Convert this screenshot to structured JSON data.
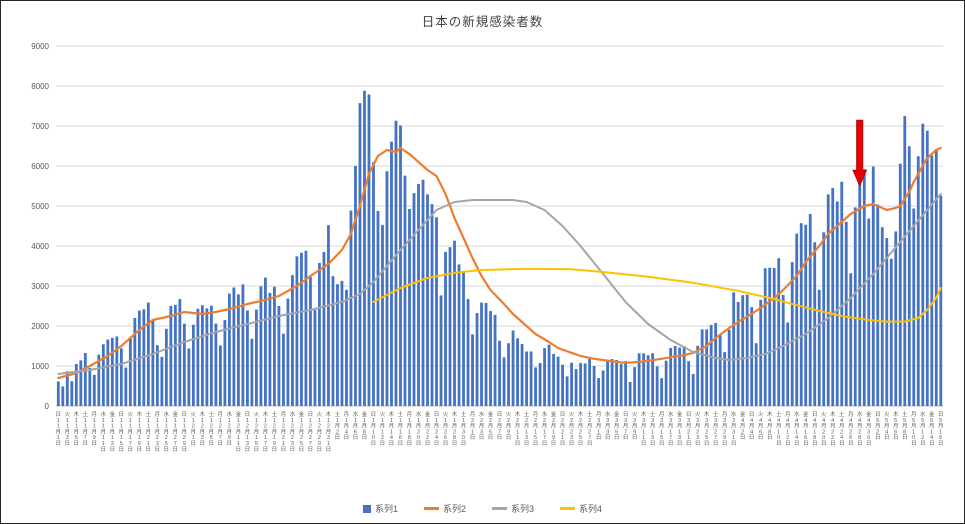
{
  "title": "日本の新規感染者数",
  "chart_data": {
    "type": "combo",
    "title": "日本の新規感染者数",
    "grid": true,
    "legend_position": "bottom",
    "y_axis": {
      "min": 0,
      "max": 9000,
      "tick_step": 1000,
      "tick_labels": [
        "0",
        "1000",
        "2000",
        "3000",
        "4000",
        "5000",
        "6000",
        "7000",
        "8000",
        "9000"
      ]
    },
    "x_axis": {
      "description": "daily dates, every 2nd day labeled vertically: weekday / month / 月 / day / 日",
      "label_every": 2,
      "dow_cycle": [
        "日",
        "月",
        "火",
        "水",
        "木",
        "金",
        "土"
      ],
      "start_dow_index": 0,
      "month_suffix": "月",
      "day_suffix": "日",
      "months": [
        {
          "month": 11,
          "days": 30
        },
        {
          "month": 12,
          "days": 31
        },
        {
          "month": 1,
          "days": 31
        },
        {
          "month": 2,
          "days": 28
        },
        {
          "month": 3,
          "days": 31
        },
        {
          "month": 4,
          "days": 30
        },
        {
          "month": 5,
          "days": 16
        }
      ]
    },
    "series": [
      {
        "name": "系列1",
        "type": "bar",
        "color": "#4472C4",
        "values": [
          614,
          488,
          868,
          620,
          1050,
          1141,
          1325,
          952,
          780,
          1284,
          1543,
          1660,
          1704,
          1738,
          1441,
          961,
          1699,
          2201,
          2386,
          2418,
          2586,
          2168,
          1520,
          1229,
          1930,
          2503,
          2529,
          2674,
          2058,
          1438,
          2030,
          2430,
          2518,
          2442,
          2508,
          2058,
          1514,
          2152,
          2811,
          2962,
          2790,
          3041,
          2388,
          1680,
          2410,
          2991,
          3211,
          2829,
          2982,
          2501,
          1806,
          2686,
          3271,
          3742,
          3832,
          3881,
          3225,
          2398,
          3576,
          3852,
          4520,
          3246,
          3044,
          3127,
          2906,
          4884,
          6001,
          7570,
          7882,
          7790,
          6093,
          4875,
          4527,
          5870,
          6607,
          7133,
          7014,
          5759,
          4925,
          5320,
          5549,
          5656,
          5292,
          5045,
          4717,
          2764,
          3853,
          3971,
          4133,
          3539,
          3344,
          2673,
          1792,
          2324,
          2585,
          2576,
          2372,
          2279,
          1632,
          1216,
          1570,
          1887,
          1693,
          1552,
          1362,
          1364,
          965,
          1076,
          1448,
          1536,
          1301,
          1234,
          1032,
          739,
          1083,
          922,
          1076,
          1065,
          1180,
          999,
          697,
          888,
          1121,
          1173,
          1148,
          1048,
          1121,
          599,
          972,
          1317,
          1316,
          1271,
          1320,
          989,
          695,
          1133,
          1451,
          1500,
          1463,
          1500,
          1119,
          800,
          1504,
          1917,
          1918,
          2027,
          2076,
          1785,
          1348,
          1905,
          2843,
          2601,
          2770,
          2783,
          2472,
          1571,
          2653,
          3445,
          3457,
          3451,
          3695,
          2775,
          2088,
          3597,
          4309,
          4570,
          4530,
          4802,
          4093,
          2905,
          4342,
          5290,
          5452,
          5113,
          5605,
          4605,
          3318,
          4965,
          5792,
          5918,
          4686,
          5986,
          5037,
          4470,
          4199,
          3680,
          4365,
          6058,
          7249,
          6493,
          4938,
          6243,
          7057,
          6881,
          6263,
          6421,
          5261
        ]
      },
      {
        "name": "系列2",
        "type": "line",
        "color": "#ED7D31",
        "points": [
          [
            0,
            700
          ],
          [
            4,
            820
          ],
          [
            7,
            1000
          ],
          [
            11,
            1250
          ],
          [
            14,
            1500
          ],
          [
            18,
            1900
          ],
          [
            21,
            2150
          ],
          [
            25,
            2250
          ],
          [
            28,
            2350
          ],
          [
            32,
            2300
          ],
          [
            35,
            2350
          ],
          [
            39,
            2450
          ],
          [
            42,
            2550
          ],
          [
            46,
            2650
          ],
          [
            49,
            2750
          ],
          [
            53,
            3000
          ],
          [
            56,
            3250
          ],
          [
            60,
            3550
          ],
          [
            63,
            3900
          ],
          [
            65,
            4300
          ],
          [
            67,
            5000
          ],
          [
            69,
            5800
          ],
          [
            71,
            6250
          ],
          [
            73,
            6400
          ],
          [
            75,
            6350
          ],
          [
            76,
            6450
          ],
          [
            78,
            6300
          ],
          [
            80,
            6100
          ],
          [
            82,
            5900
          ],
          [
            84,
            5750
          ],
          [
            86,
            5300
          ],
          [
            88,
            4700
          ],
          [
            90,
            4200
          ],
          [
            92,
            3700
          ],
          [
            94,
            3250
          ],
          [
            96,
            2900
          ],
          [
            99,
            2550
          ],
          [
            101,
            2300
          ],
          [
            104,
            2000
          ],
          [
            106,
            1800
          ],
          [
            109,
            1600
          ],
          [
            111,
            1450
          ],
          [
            114,
            1330
          ],
          [
            116,
            1250
          ],
          [
            119,
            1180
          ],
          [
            121,
            1150
          ],
          [
            124,
            1100
          ],
          [
            126,
            1080
          ],
          [
            129,
            1100
          ],
          [
            131,
            1130
          ],
          [
            134,
            1180
          ],
          [
            136,
            1220
          ],
          [
            139,
            1270
          ],
          [
            141,
            1330
          ],
          [
            144,
            1500
          ],
          [
            146,
            1700
          ],
          [
            149,
            1950
          ],
          [
            151,
            2100
          ],
          [
            154,
            2300
          ],
          [
            156,
            2450
          ],
          [
            159,
            2700
          ],
          [
            161,
            2900
          ],
          [
            164,
            3250
          ],
          [
            166,
            3600
          ],
          [
            169,
            4000
          ],
          [
            171,
            4300
          ],
          [
            174,
            4600
          ],
          [
            176,
            4800
          ],
          [
            179,
            5000
          ],
          [
            181,
            5050
          ],
          [
            183,
            4950
          ],
          [
            184,
            4900
          ],
          [
            186,
            4950
          ],
          [
            187,
            5000
          ],
          [
            189,
            5350
          ],
          [
            190,
            5600
          ],
          [
            192,
            6000
          ],
          [
            193,
            6200
          ],
          [
            195,
            6400
          ],
          [
            196,
            6450
          ]
        ]
      },
      {
        "name": "系列3",
        "type": "line",
        "color": "#A5A5A5",
        "points": [
          [
            0,
            800
          ],
          [
            7,
            900
          ],
          [
            14,
            1050
          ],
          [
            21,
            1300
          ],
          [
            28,
            1600
          ],
          [
            35,
            1850
          ],
          [
            42,
            2050
          ],
          [
            49,
            2250
          ],
          [
            56,
            2400
          ],
          [
            63,
            2600
          ],
          [
            67,
            2800
          ],
          [
            70,
            3100
          ],
          [
            73,
            3500
          ],
          [
            76,
            3900
          ],
          [
            80,
            4400
          ],
          [
            84,
            4900
          ],
          [
            88,
            5100
          ],
          [
            92,
            5150
          ],
          [
            96,
            5150
          ],
          [
            101,
            5150
          ],
          [
            104,
            5100
          ],
          [
            108,
            4900
          ],
          [
            112,
            4500
          ],
          [
            116,
            4000
          ],
          [
            121,
            3300
          ],
          [
            126,
            2600
          ],
          [
            131,
            2050
          ],
          [
            136,
            1650
          ],
          [
            141,
            1350
          ],
          [
            146,
            1200
          ],
          [
            149,
            1150
          ],
          [
            153,
            1200
          ],
          [
            157,
            1300
          ],
          [
            161,
            1500
          ],
          [
            166,
            1800
          ],
          [
            171,
            2200
          ],
          [
            176,
            2700
          ],
          [
            181,
            3300
          ],
          [
            184,
            3700
          ],
          [
            187,
            4100
          ],
          [
            190,
            4500
          ],
          [
            193,
            4900
          ],
          [
            196,
            5300
          ]
        ]
      },
      {
        "name": "系列4",
        "type": "line",
        "color": "#FFC000",
        "points": [
          [
            70,
            2600
          ],
          [
            76,
            2950
          ],
          [
            82,
            3200
          ],
          [
            88,
            3330
          ],
          [
            94,
            3400
          ],
          [
            104,
            3430
          ],
          [
            114,
            3420
          ],
          [
            121,
            3350
          ],
          [
            131,
            3230
          ],
          [
            141,
            3080
          ],
          [
            151,
            2880
          ],
          [
            158,
            2700
          ],
          [
            164,
            2520
          ],
          [
            170,
            2350
          ],
          [
            175,
            2230
          ],
          [
            180,
            2150
          ],
          [
            184,
            2110
          ],
          [
            188,
            2110
          ],
          [
            191,
            2200
          ],
          [
            193,
            2400
          ],
          [
            195,
            2700
          ],
          [
            196,
            2950
          ]
        ]
      }
    ],
    "annotation": {
      "shape": "down-arrow",
      "color_fill": "#E60000",
      "color_edge": "#990000",
      "day_index": 178,
      "value_top": 7150,
      "value_tip": 5500
    }
  },
  "legend": {
    "items": [
      {
        "label": "系列1",
        "marker": "square",
        "color": "#4472C4"
      },
      {
        "label": "系列2",
        "marker": "line",
        "color": "#ED7D31"
      },
      {
        "label": "系列3",
        "marker": "line",
        "color": "#A5A5A5"
      },
      {
        "label": "系列4",
        "marker": "line",
        "color": "#FFC000"
      }
    ]
  },
  "style_colors": {
    "gridline": "#D9D9D9",
    "axis_line": "#BFBFBF",
    "tick_text": "#595959",
    "title_text": "#404040"
  }
}
